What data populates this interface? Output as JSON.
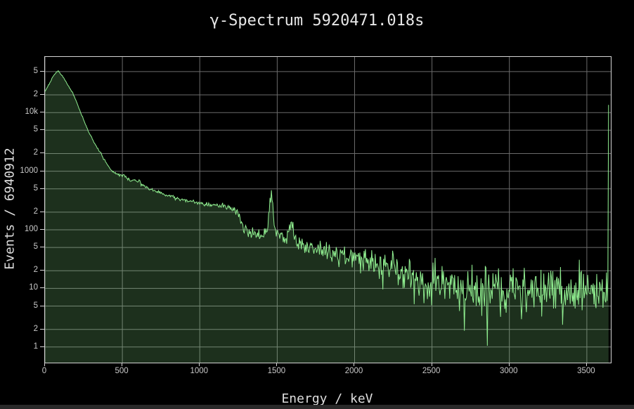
{
  "page": {
    "background": "#000000",
    "bottom_bar_color": "#292929"
  },
  "chart_data": {
    "type": "area",
    "title": "γ-Spectrum 5920471.018s",
    "xlabel": "Energy / keV",
    "ylabel": "Events / 6940912",
    "y_scale": "log",
    "grid": true,
    "legend": "none",
    "x_range_kev": [
      0,
      3655
    ],
    "y_log_range": [
      -0.266,
      4.949
    ],
    "x_ticks": [
      {
        "label": "0",
        "kev": 0
      },
      {
        "label": "500",
        "kev": 500
      },
      {
        "label": "1000",
        "kev": 1000
      },
      {
        "label": "1500",
        "kev": 1500
      },
      {
        "label": "2000",
        "kev": 2000
      },
      {
        "label": "2500",
        "kev": 2500
      },
      {
        "label": "3000",
        "kev": 3000
      },
      {
        "label": "3500",
        "kev": 3500
      }
    ],
    "y_ticks": [
      {
        "label": "5",
        "value": 50000
      },
      {
        "label": "2",
        "value": 20000
      },
      {
        "label": "10k",
        "value": 10000
      },
      {
        "label": "5",
        "value": 5000
      },
      {
        "label": "2",
        "value": 2000
      },
      {
        "label": "1000",
        "value": 1000
      },
      {
        "label": "5",
        "value": 500
      },
      {
        "label": "2",
        "value": 200
      },
      {
        "label": "100",
        "value": 100
      },
      {
        "label": "5",
        "value": 50
      },
      {
        "label": "2",
        "value": 20
      },
      {
        "label": "10",
        "value": 10
      },
      {
        "label": "5",
        "value": 5
      },
      {
        "label": "2",
        "value": 2
      },
      {
        "label": "1",
        "value": 1
      }
    ],
    "colors": {
      "line": "#90ee90",
      "fill": "rgba(144,238,144,0.2)",
      "grid": "#6b6b6b",
      "axis": "#d4d4d4",
      "tick_label": "#c9c9c9",
      "title": "#e8e8e8"
    },
    "backbone_kev_counts": [
      [
        0,
        23000
      ],
      [
        25,
        30000
      ],
      [
        50,
        40000
      ],
      [
        70,
        47500
      ],
      [
        85,
        51000
      ],
      [
        100,
        46500
      ],
      [
        115,
        41000
      ],
      [
        135,
        33500
      ],
      [
        155,
        27000
      ],
      [
        175,
        22500
      ],
      [
        195,
        17500
      ],
      [
        215,
        12800
      ],
      [
        235,
        9300
      ],
      [
        255,
        6900
      ],
      [
        280,
        4800
      ],
      [
        305,
        3550
      ],
      [
        330,
        2700
      ],
      [
        355,
        2150
      ],
      [
        380,
        1600
      ],
      [
        400,
        1300
      ],
      [
        430,
        1030
      ],
      [
        460,
        900
      ],
      [
        490,
        845
      ],
      [
        520,
        770
      ],
      [
        560,
        690
      ],
      [
        600,
        625
      ],
      [
        640,
        550
      ],
      [
        680,
        490
      ],
      [
        715,
        455
      ],
      [
        760,
        410
      ],
      [
        810,
        375
      ],
      [
        860,
        345
      ],
      [
        910,
        320
      ],
      [
        960,
        300
      ],
      [
        1010,
        283
      ],
      [
        1060,
        270
      ],
      [
        1110,
        260
      ],
      [
        1160,
        252
      ],
      [
        1210,
        243
      ],
      [
        1240,
        225
      ],
      [
        1258,
        145
      ],
      [
        1275,
        115
      ],
      [
        1310,
        97
      ],
      [
        1350,
        88
      ],
      [
        1400,
        86
      ],
      [
        1461,
        86
      ],
      [
        1520,
        79
      ],
      [
        1560,
        72
      ],
      [
        1588,
        70
      ],
      [
        1620,
        64
      ],
      [
        1670,
        58
      ],
      [
        1720,
        53
      ],
      [
        1770,
        48
      ],
      [
        1820,
        44
      ],
      [
        1870,
        40
      ],
      [
        1920,
        37
      ],
      [
        1970,
        34
      ],
      [
        2020,
        31.5
      ],
      [
        2070,
        29.5
      ],
      [
        2120,
        27.5
      ],
      [
        2170,
        26
      ],
      [
        2220,
        24
      ],
      [
        2270,
        21.5
      ],
      [
        2320,
        18.5
      ],
      [
        2370,
        15.5
      ],
      [
        2420,
        13.5
      ],
      [
        2470,
        12
      ],
      [
        2520,
        11.2
      ],
      [
        2570,
        11.8
      ],
      [
        2600,
        12.5
      ],
      [
        2640,
        10.8
      ],
      [
        2700,
        10.3
      ],
      [
        2800,
        10
      ],
      [
        2900,
        9.8
      ],
      [
        3000,
        10
      ],
      [
        3100,
        9.7
      ],
      [
        3200,
        9.6
      ],
      [
        3300,
        9.8
      ],
      [
        3400,
        9.6
      ],
      [
        3500,
        9.8
      ],
      [
        3600,
        10
      ],
      [
        3642,
        10
      ]
    ],
    "peaks": [
      {
        "center_kev": 511,
        "sigma_kev": 8,
        "amp_counts": 70
      },
      {
        "center_kev": 583,
        "sigma_kev": 7,
        "amp_counts": 55
      },
      {
        "center_kev": 609,
        "sigma_kev": 7,
        "amp_counts": 95
      },
      {
        "center_kev": 1461,
        "sigma_kev": 11,
        "amp_counts": 268
      },
      {
        "center_kev": 1588,
        "sigma_kev": 9,
        "amp_counts": 62
      }
    ],
    "noise_profile_kev_logsigma": [
      [
        0,
        0.004
      ],
      [
        150,
        0.005
      ],
      [
        300,
        0.007
      ],
      [
        500,
        0.01
      ],
      [
        700,
        0.013
      ],
      [
        900,
        0.016
      ],
      [
        1100,
        0.02
      ],
      [
        1250,
        0.045
      ],
      [
        1350,
        0.055
      ],
      [
        1500,
        0.055
      ],
      [
        1650,
        0.075
      ],
      [
        1800,
        0.09
      ],
      [
        1950,
        0.1
      ],
      [
        2100,
        0.115
      ],
      [
        2250,
        0.13
      ],
      [
        2400,
        0.16
      ],
      [
        2550,
        0.18
      ],
      [
        2700,
        0.19
      ],
      [
        3000,
        0.19
      ],
      [
        3300,
        0.19
      ],
      [
        3642,
        0.19
      ]
    ],
    "down_spikes_kev_counts": [
      [
        2711,
        1.9
      ],
      [
        2858,
        1.05
      ],
      [
        3345,
        2.4
      ]
    ],
    "end_spike": {
      "kev": 3640,
      "counts": 13500
    },
    "data_end_kev": 3642,
    "bin_kev": 4.5,
    "noise_seed": 7
  }
}
